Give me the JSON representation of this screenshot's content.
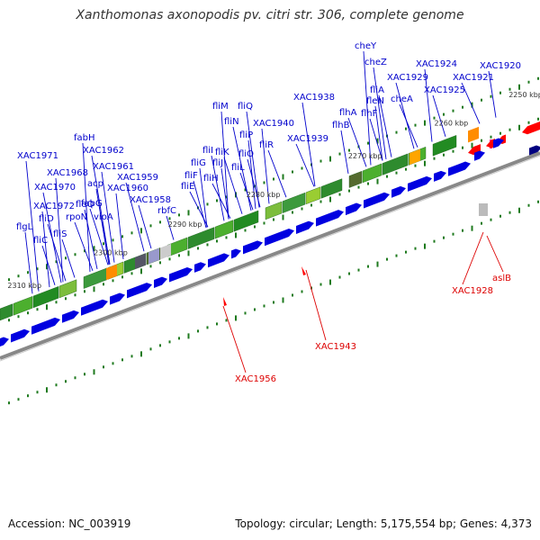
{
  "header": {
    "title": "Xanthomonas axonopodis pv. citri str. 306, complete genome"
  },
  "footer": {
    "accession": "Accession: NC_003919",
    "topology": "Topology: circular; Length: 5,175,554 bp; Genes: 4,373"
  },
  "colors": {
    "forward_arrow": "#0000e0",
    "reverse_arrow": "#ff0000",
    "label_forward": "#0000cc",
    "label_reverse": "#dd0000",
    "backbone": "#888888",
    "ticks": "#1e7a1e"
  },
  "ticks": [
    {
      "label": "2250 kbp",
      "t": 0.04
    },
    {
      "label": "2260 kbp",
      "t": 0.135
    },
    {
      "label": "2270 kbp",
      "t": 0.245
    },
    {
      "label": "2280 kbp",
      "t": 0.375
    },
    {
      "label": "2290 kbp",
      "t": 0.475
    },
    {
      "label": "2300 kbp",
      "t": 0.57
    },
    {
      "label": "2310 kbp",
      "t": 0.68
    }
  ],
  "forward_labels": [
    {
      "text": "cheY",
      "t": 0.03
    },
    {
      "text": "cheZ",
      "t": 0.05
    },
    {
      "text": "XAC1929",
      "t": 0.06
    },
    {
      "text": "fleN",
      "t": 0.09
    },
    {
      "text": "fliA",
      "t": 0.08
    },
    {
      "text": "cheA",
      "t": 0.1
    },
    {
      "text": "XAC1924",
      "t": 0.04
    },
    {
      "text": "XAC1925",
      "t": 0.05
    },
    {
      "text": "XAC1921",
      "t": 0.02
    },
    {
      "text": "XAC1920",
      "t": 0.01
    },
    {
      "text": "flhF",
      "t": 0.12
    },
    {
      "text": "flhA",
      "t": 0.14
    },
    {
      "text": "flhB",
      "t": 0.16
    },
    {
      "text": "XAC1938",
      "t": 0.19
    },
    {
      "text": "XAC1939",
      "t": 0.22
    },
    {
      "text": "XAC1940",
      "t": 0.26
    },
    {
      "text": "fliQ",
      "t": 0.27
    },
    {
      "text": "fliR",
      "t": 0.28
    },
    {
      "text": "fliP",
      "t": 0.29
    },
    {
      "text": "fliO",
      "t": 0.3
    },
    {
      "text": "fliN",
      "t": 0.31
    },
    {
      "text": "fliM",
      "t": 0.32
    },
    {
      "text": "fliL",
      "t": 0.33
    },
    {
      "text": "fliK",
      "t": 0.34
    },
    {
      "text": "fliJ",
      "t": 0.35
    },
    {
      "text": "fliI",
      "t": 0.36
    },
    {
      "text": "fliH",
      "t": 0.37
    },
    {
      "text": "fliG",
      "t": 0.38
    },
    {
      "text": "fliF",
      "t": 0.39
    },
    {
      "text": "fliE",
      "t": 0.4
    },
    {
      "text": "rbfC",
      "t": 0.45
    },
    {
      "text": "XAC1958",
      "t": 0.48
    },
    {
      "text": "XAC1959",
      "t": 0.5
    },
    {
      "text": "XAC1960",
      "t": 0.52
    },
    {
      "text": "XAC1961",
      "t": 0.53
    },
    {
      "text": "XAC1962",
      "t": 0.54
    },
    {
      "text": "fabH",
      "t": 0.55
    },
    {
      "text": "acp",
      "t": 0.56
    },
    {
      "text": "fabG",
      "t": 0.565
    },
    {
      "text": "vioA",
      "t": 0.575
    },
    {
      "text": "fleQ",
      "t": 0.59
    },
    {
      "text": "rpoN",
      "t": 0.6
    },
    {
      "text": "XAC1968",
      "t": 0.62
    },
    {
      "text": "XAC1971",
      "t": 0.64
    },
    {
      "text": "XAC1970",
      "t": 0.635
    },
    {
      "text": "XAC1972",
      "t": 0.65
    },
    {
      "text": "fliS",
      "t": 0.66
    },
    {
      "text": "fliD",
      "t": 0.67
    },
    {
      "text": "flgL",
      "t": 0.68
    },
    {
      "text": "fliC",
      "t": 0.7
    }
  ],
  "reverse_labels": [
    {
      "text": "aslB"
    },
    {
      "text": "XAC1928"
    },
    {
      "text": "XAC1943"
    },
    {
      "text": "XAC1956"
    }
  ]
}
